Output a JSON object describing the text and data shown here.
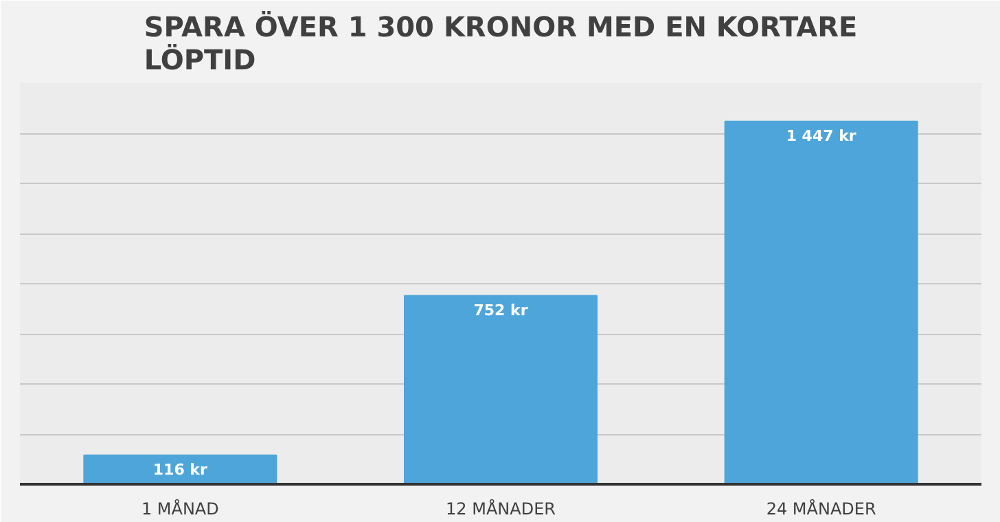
{
  "chart_data": {
    "type": "bar",
    "title": "SPARA ÖVER 1 300 KRONOR MED EN KORTARE LÖPTID",
    "categories": [
      "1 MÅNAD",
      "12 MÅNADER",
      "24 MÅNADER"
    ],
    "values": [
      116,
      752,
      1447
    ],
    "color": "#4ea5d9",
    "value_labels": [
      "116 kr",
      "752 kr",
      "1 447 kr"
    ],
    "ylim": [
      0,
      1600
    ],
    "yticks": [
      {
        "value": 0,
        "label": null
      },
      {
        "value": 200,
        "label": null
      },
      {
        "value": 400,
        "label": null
      },
      {
        "value": 600,
        "label": null
      },
      {
        "value": 800,
        "label": null
      },
      {
        "value": 1000,
        "label": null
      },
      {
        "value": 1200,
        "label": null
      },
      {
        "value": 1400,
        "label": null
      },
      {
        "value": 1600,
        "label": null
      }
    ],
    "grid": "y",
    "tick_labels": "x"
  }
}
